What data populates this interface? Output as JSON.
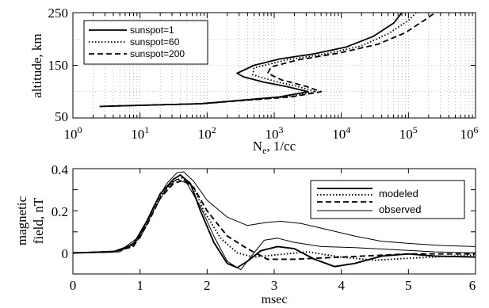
{
  "chart_data": [
    {
      "type": "line",
      "xscale": "log",
      "xlabel_main": "N",
      "xlabel_sub": "e",
      "xlabel_rest": ", 1/cc",
      "ylabel": "altitude, km",
      "xlim": [
        1,
        1000000
      ],
      "ylim": [
        50,
        250
      ],
      "grid": true,
      "legend_position": "top-left",
      "x_ticks": [
        {
          "base": "10",
          "exp": "0",
          "value": 1
        },
        {
          "base": "10",
          "exp": "1",
          "value": 10
        },
        {
          "base": "10",
          "exp": "2",
          "value": 100
        },
        {
          "base": "10",
          "exp": "3",
          "value": 1000
        },
        {
          "base": "10",
          "exp": "4",
          "value": 10000
        },
        {
          "base": "10",
          "exp": "5",
          "value": 100000
        },
        {
          "base": "10",
          "exp": "6",
          "value": 1000000
        }
      ],
      "y_ticks": [
        "50",
        "150",
        "250"
      ],
      "y_tick_values": [
        50,
        150,
        250
      ],
      "series": [
        {
          "name": "sunspot=1",
          "dash": "solid",
          "points": [
            [
              2.5,
              72
            ],
            [
              80,
              77
            ],
            [
              1200,
              90
            ],
            [
              3200,
              100
            ],
            [
              1500,
              110
            ],
            [
              700,
              118
            ],
            [
              350,
              128
            ],
            [
              280,
              135
            ],
            [
              500,
              150
            ],
            [
              1200,
              162
            ],
            [
              4000,
              172
            ],
            [
              12000,
              185
            ],
            [
              30000,
              205
            ],
            [
              60000,
              230
            ],
            [
              80000,
              250
            ]
          ]
        },
        {
          "name": "sunspot=60",
          "dash": "dotted",
          "points": [
            [
              2.5,
              72
            ],
            [
              80,
              77
            ],
            [
              1500,
              90
            ],
            [
              4200,
              100
            ],
            [
              2200,
              110
            ],
            [
              1000,
              120
            ],
            [
              480,
              132
            ],
            [
              500,
              145
            ],
            [
              1500,
              160
            ],
            [
              6000,
              172
            ],
            [
              20000,
              187
            ],
            [
              50000,
              210
            ],
            [
              100000,
              235
            ],
            [
              130000,
              250
            ]
          ]
        },
        {
          "name": "sunspot=200",
          "dash": "dashed",
          "points": [
            [
              2.5,
              72
            ],
            [
              80,
              77
            ],
            [
              1800,
              90
            ],
            [
              5000,
              100
            ],
            [
              3000,
              110
            ],
            [
              1300,
              122
            ],
            [
              800,
              135
            ],
            [
              900,
              147
            ],
            [
              2200,
              160
            ],
            [
              9000,
              173
            ],
            [
              35000,
              190
            ],
            [
              90000,
              212
            ],
            [
              180000,
              237
            ],
            [
              250000,
              250
            ]
          ]
        }
      ]
    },
    {
      "type": "line",
      "xlabel": "msec",
      "ylabel_line1": "magnetic",
      "ylabel_line2": "field, nT",
      "xlim": [
        0,
        6
      ],
      "ylim": [
        -0.1,
        0.4
      ],
      "grid": false,
      "legend_position": "top-right",
      "x_ticks": [
        "0",
        "1",
        "2",
        "3",
        "4",
        "5",
        "6"
      ],
      "x_tick_values": [
        0,
        1,
        2,
        3,
        4,
        5,
        6
      ],
      "y_ticks": [
        "0",
        "0.2",
        "0.4"
      ],
      "y_tick_values": [
        0,
        0.2,
        0.4
      ],
      "legend": [
        {
          "name": "modeled",
          "dash": "solid",
          "weight": "thick"
        },
        {
          "name": "",
          "dash": "dotted",
          "weight": "thick"
        },
        {
          "name": "",
          "dash": "dashed",
          "weight": "thick"
        },
        {
          "name": "observed",
          "dash": "solid",
          "weight": "thin"
        }
      ],
      "series": [
        {
          "group": "modeled",
          "dash": "solid",
          "weight": "thick",
          "points": [
            [
              0,
              0
            ],
            [
              0.6,
              0.005
            ],
            [
              0.9,
              0.04
            ],
            [
              1.1,
              0.15
            ],
            [
              1.3,
              0.28
            ],
            [
              1.5,
              0.35
            ],
            [
              1.6,
              0.37
            ],
            [
              1.75,
              0.33
            ],
            [
              1.9,
              0.2
            ],
            [
              2.1,
              0.05
            ],
            [
              2.3,
              -0.05
            ],
            [
              2.45,
              -0.07
            ],
            [
              2.6,
              -0.04
            ],
            [
              2.8,
              0.01
            ],
            [
              3.05,
              0.03
            ],
            [
              3.3,
              0.02
            ],
            [
              3.6,
              -0.03
            ],
            [
              3.9,
              -0.065
            ],
            [
              4.2,
              -0.05
            ],
            [
              4.6,
              -0.015
            ],
            [
              5.0,
              -0.005
            ],
            [
              5.4,
              -0.015
            ],
            [
              6,
              -0.02
            ]
          ]
        },
        {
          "group": "modeled",
          "dash": "dotted",
          "weight": "thick",
          "points": [
            [
              0,
              0
            ],
            [
              0.6,
              0.005
            ],
            [
              0.9,
              0.035
            ],
            [
              1.1,
              0.14
            ],
            [
              1.3,
              0.27
            ],
            [
              1.5,
              0.34
            ],
            [
              1.62,
              0.355
            ],
            [
              1.8,
              0.31
            ],
            [
              1.95,
              0.2
            ],
            [
              2.2,
              0.07
            ],
            [
              2.45,
              0.0
            ],
            [
              2.7,
              -0.02
            ],
            [
              3.0,
              -0.01
            ],
            [
              3.5,
              0.005
            ],
            [
              4.0,
              -0.02
            ],
            [
              4.5,
              -0.035
            ],
            [
              5.0,
              -0.025
            ],
            [
              6,
              -0.01
            ]
          ]
        },
        {
          "group": "modeled",
          "dash": "dashed",
          "weight": "thick",
          "points": [
            [
              0,
              0
            ],
            [
              0.6,
              0.005
            ],
            [
              0.9,
              0.03
            ],
            [
              1.1,
              0.13
            ],
            [
              1.3,
              0.26
            ],
            [
              1.5,
              0.33
            ],
            [
              1.65,
              0.345
            ],
            [
              1.8,
              0.31
            ],
            [
              2.0,
              0.2
            ],
            [
              2.3,
              0.08
            ],
            [
              2.6,
              0.02
            ],
            [
              2.9,
              -0.03
            ],
            [
              3.3,
              -0.03
            ],
            [
              4.0,
              -0.02
            ],
            [
              5.0,
              -0.005
            ],
            [
              6,
              -0.005
            ]
          ]
        },
        {
          "group": "observed",
          "dash": "solid",
          "weight": "thin",
          "points": [
            [
              0,
              0
            ],
            [
              0.7,
              0.01
            ],
            [
              1.0,
              0.08
            ],
            [
              1.2,
              0.22
            ],
            [
              1.4,
              0.33
            ],
            [
              1.55,
              0.38
            ],
            [
              1.65,
              0.385
            ],
            [
              1.8,
              0.34
            ],
            [
              2.0,
              0.25
            ],
            [
              2.3,
              0.17
            ],
            [
              2.6,
              0.13
            ],
            [
              2.9,
              0.145
            ],
            [
              3.1,
              0.15
            ],
            [
              3.4,
              0.14
            ],
            [
              3.8,
              0.11
            ],
            [
              4.2,
              0.08
            ],
            [
              4.6,
              0.055
            ],
            [
              5.0,
              0.045
            ],
            [
              5.5,
              0.035
            ],
            [
              6,
              0.03
            ]
          ]
        },
        {
          "group": "observed",
          "dash": "solid",
          "weight": "thin",
          "points": [
            [
              0,
              0
            ],
            [
              0.7,
              0.005
            ],
            [
              1.0,
              0.07
            ],
            [
              1.2,
              0.2
            ],
            [
              1.4,
              0.31
            ],
            [
              1.55,
              0.35
            ],
            [
              1.7,
              0.33
            ],
            [
              1.9,
              0.22
            ],
            [
              2.1,
              0.08
            ],
            [
              2.3,
              -0.04
            ],
            [
              2.5,
              -0.08
            ],
            [
              2.65,
              -0.02
            ],
            [
              2.85,
              0.06
            ],
            [
              3.05,
              0.07
            ],
            [
              3.3,
              0.05
            ],
            [
              3.7,
              0.03
            ],
            [
              4.2,
              0.025
            ],
            [
              4.8,
              0.015
            ],
            [
              5.4,
              0.005
            ],
            [
              6,
              0.0
            ]
          ]
        }
      ]
    }
  ]
}
